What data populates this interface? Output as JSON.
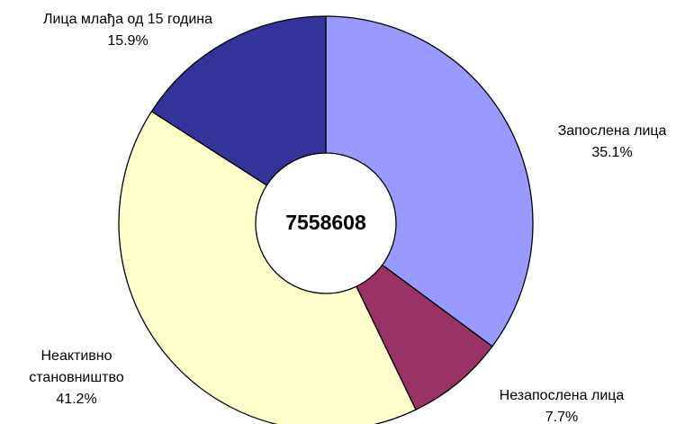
{
  "chart_data": {
    "type": "donut",
    "center_label": "7558608",
    "categories": [
      "Запослена лица",
      "Незапослена лица",
      "Неактивно становништво",
      "Лица млађа од 15 година"
    ],
    "values": [
      35.1,
      7.7,
      41.2,
      15.9
    ],
    "value_labels": [
      "35.1%",
      "7.7%",
      "41.2%",
      "15.9%"
    ],
    "colors": [
      "#9999ff",
      "#993366",
      "#ffffcc",
      "#333399"
    ]
  }
}
